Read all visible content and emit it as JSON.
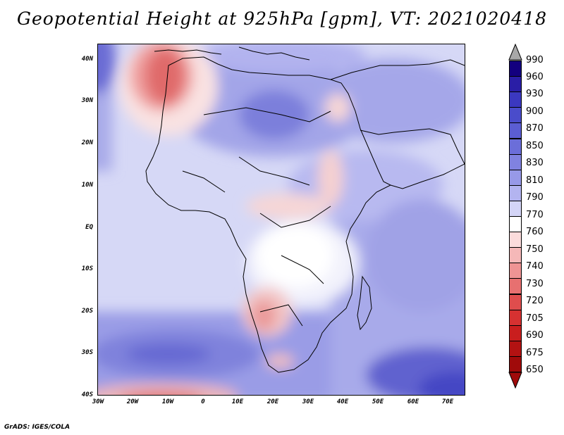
{
  "title": "Geopotential Height at 925hPa [gpm], VT: 2021020418",
  "map": {
    "region": "Africa",
    "lon_range": [
      -30,
      75
    ],
    "lat_range": [
      -40,
      45
    ],
    "lat_labels": [
      "40N",
      "30N",
      "20N",
      "10N",
      "EQ",
      "10S",
      "20S",
      "30S",
      "40S"
    ],
    "lon_labels": [
      "30W",
      "20W",
      "10W",
      "0",
      "10E",
      "20E",
      "30E",
      "40E",
      "50E",
      "60E",
      "70E"
    ]
  },
  "colorbar": {
    "levels": [
      "990",
      "960",
      "930",
      "900",
      "870",
      "850",
      "830",
      "810",
      "790",
      "770",
      "760",
      "750",
      "740",
      "730",
      "720",
      "705",
      "690",
      "675",
      "650"
    ],
    "colors": [
      "#13007f",
      "#2a1ea6",
      "#3b38c0",
      "#4a4ccb",
      "#5b5dd3",
      "#6b6ed9",
      "#8082e0",
      "#9799e8",
      "#b3b4f0",
      "#d4d5f7",
      "#ffffff",
      "#fbdcdc",
      "#f5b8b8",
      "#ee9494",
      "#e77070",
      "#df4d4d",
      "#d63131",
      "#c91e1e",
      "#b31212",
      "#a00a0a"
    ],
    "over_arrow_color": "#a8a8a8",
    "under_arrow_color": "#a00a0a"
  },
  "footer": "GrADS: IGES/COLA"
}
